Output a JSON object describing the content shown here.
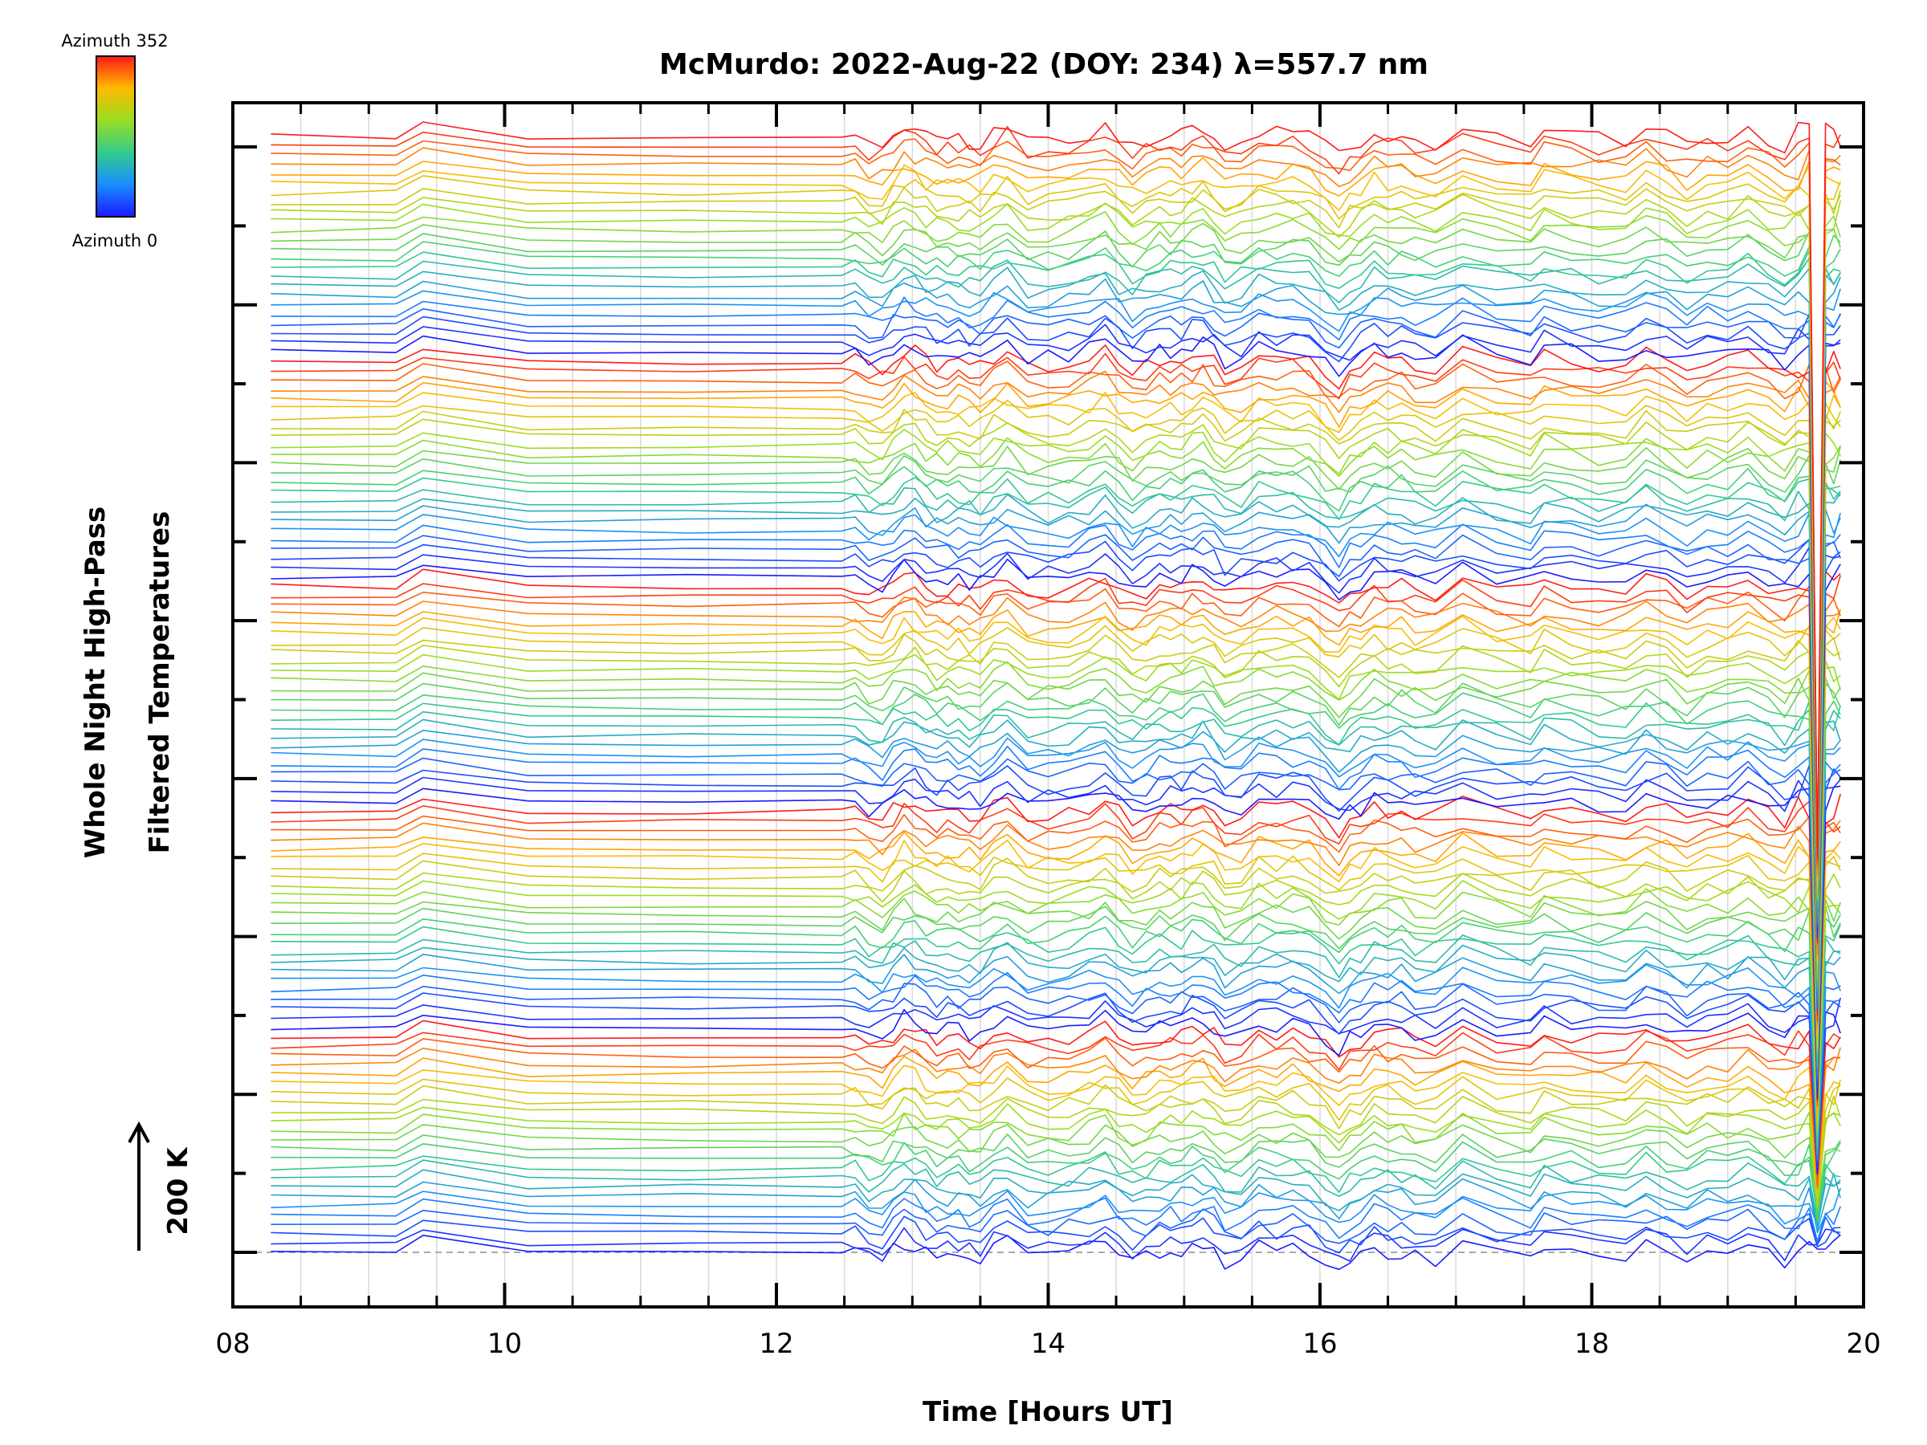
{
  "chart_data": {
    "type": "line",
    "title": "McMurdo: 2022-Aug-22 (DOY: 234) λ=557.7 nm",
    "xlabel": "Time [Hours UT]",
    "ylabel_lines": [
      "Whole Night High-Pass",
      "Filtered Temperatures"
    ],
    "scale_label": "200 K",
    "xlim": [
      8,
      20
    ],
    "xticks": [
      8,
      10,
      12,
      14,
      16,
      18,
      20
    ],
    "xtick_labels": [
      "08",
      "10",
      "12",
      "14",
      "16",
      "18",
      "20"
    ],
    "y_minor_tick_count": 15,
    "n_traces": 120,
    "n_bands": 5,
    "colorbar": {
      "top_label": "Azimuth 352",
      "bottom_label": "Azimuth 0",
      "azimuth_min": 0,
      "azimuth_max": 352,
      "colormap": "rainbow (blue at 0, green, yellow, red at 352)"
    },
    "sample_times": [
      8.28,
      9.2,
      9.4,
      10.17,
      11.35,
      12.48,
      12.58,
      12.68,
      12.78,
      12.86,
      12.94,
      13.02,
      13.1,
      13.18,
      13.26,
      13.34,
      13.42,
      13.5,
      13.6,
      13.7,
      13.85,
      14.0,
      14.15,
      14.3,
      14.42,
      14.52,
      14.62,
      14.72,
      14.82,
      14.9,
      14.98,
      15.06,
      15.14,
      15.22,
      15.3,
      15.42,
      15.55,
      15.68,
      15.8,
      15.92,
      16.04,
      16.14,
      16.22,
      16.3,
      16.4,
      16.5,
      16.6,
      16.7,
      16.85,
      17.05,
      17.3,
      17.55,
      17.65,
      17.85,
      18.05,
      18.25,
      18.4,
      18.55,
      18.7,
      18.85,
      19.0,
      19.15,
      19.3,
      19.42,
      19.52,
      19.6,
      19.66,
      19.72,
      19.78,
      19.83
    ]
  },
  "colors": {
    "background": "#ffffff",
    "axes": "#000000",
    "grid": "#d9d9d9",
    "baseline": "#aaaaaa"
  }
}
